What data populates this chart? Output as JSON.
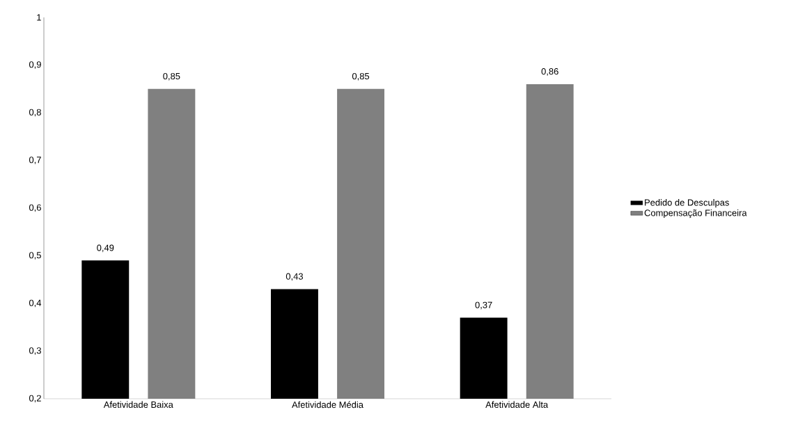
{
  "chart_data": {
    "type": "bar",
    "categories": [
      "Afetividade Baixa",
      "Afetividade Média",
      "Afetividade Alta"
    ],
    "series": [
      {
        "name": "Pedido de Desculpas",
        "color": "#000000",
        "values": [
          0.49,
          0.43,
          0.37
        ],
        "value_labels": [
          "0,49",
          "0,43",
          "0,37"
        ]
      },
      {
        "name": "Compensação Financeira",
        "color": "#808080",
        "values": [
          0.85,
          0.85,
          0.86
        ],
        "value_labels": [
          "0,85",
          "0,85",
          "0,86"
        ]
      }
    ],
    "ylim": [
      0.2,
      1
    ],
    "yticks": [
      {
        "value": 0.2,
        "label": "0,2"
      },
      {
        "value": 0.3,
        "label": "0,3"
      },
      {
        "value": 0.4,
        "label": "0,4"
      },
      {
        "value": 0.5,
        "label": "0,5"
      },
      {
        "value": 0.6,
        "label": "0,6"
      },
      {
        "value": 0.7,
        "label": "0,7"
      },
      {
        "value": 0.8,
        "label": "0,8"
      },
      {
        "value": 0.9,
        "label": "0,9"
      },
      {
        "value": 1,
        "label": "1"
      }
    ],
    "legend": "right",
    "grid": false
  }
}
